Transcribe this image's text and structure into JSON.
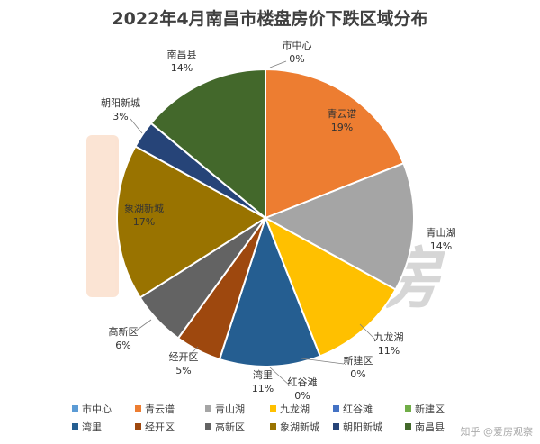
{
  "chart_data": {
    "type": "pie",
    "title": "2022年4月南昌市楼盘房价下跌区域分布",
    "slices": [
      {
        "name": "市中心",
        "value": 0,
        "label": "0%",
        "color": "#5b9bd5"
      },
      {
        "name": "青云谱",
        "value": 19,
        "label": "19%",
        "color": "#ed7d31"
      },
      {
        "name": "青山湖",
        "value": 14,
        "label": "14%",
        "color": "#a5a5a5"
      },
      {
        "name": "九龙湖",
        "value": 11,
        "label": "11%",
        "color": "#ffc000"
      },
      {
        "name": "红谷滩",
        "value": 0,
        "label": "0%",
        "color": "#4472c4"
      },
      {
        "name": "新建区",
        "value": 0,
        "label": "0%",
        "color": "#70ad47"
      },
      {
        "name": "湾里",
        "value": 11,
        "label": "11%",
        "color": "#255e91"
      },
      {
        "name": "经开区",
        "value": 5,
        "label": "5%",
        "color": "#9e480e"
      },
      {
        "name": "高新区",
        "value": 6,
        "label": "6%",
        "color": "#636363"
      },
      {
        "name": "象湖新城",
        "value": 17,
        "label": "17%",
        "color": "#997300"
      },
      {
        "name": "朝阳新城",
        "value": 3,
        "label": "3%",
        "color": "#264478"
      },
      {
        "name": "南昌县",
        "value": 14,
        "label": "14%",
        "color": "#43682b"
      }
    ],
    "legend_position": "bottom"
  },
  "watermark": {
    "logo_text": "爱房",
    "credit": "知乎 @爱房观察"
  }
}
